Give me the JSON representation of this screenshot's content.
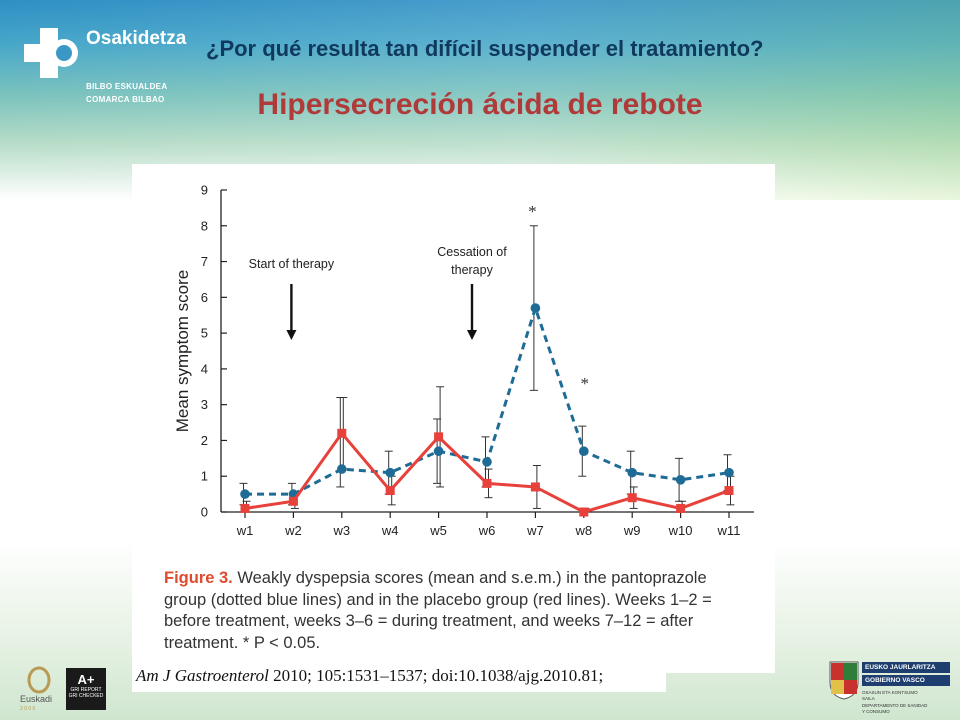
{
  "branding": {
    "org_name": "Osakidetza",
    "org_sub1": "BILBO ESKUALDEA",
    "org_sub2": "COMARCA BILBAO",
    "euskadi_label": "Euskadi",
    "euskadi_year": "2 0 0 0",
    "gri_grade": "A+",
    "gri_line1": "GRI REPORT",
    "gri_line2": "GRI CHECKED",
    "gov_line1": "EUSKO JAURLARITZA",
    "gov_line2": "GOBIERNO VASCO",
    "gov_small1": "OSASUN ETA KONTSUMO",
    "gov_small2": "SAILA",
    "gov_small3": "DEPARTAMENTO DE SANIDAD",
    "gov_small4": "Y CONSUMO"
  },
  "slide": {
    "question": "¿Por qué resulta tan difícil suspender el tratamiento?",
    "title": "Hipersecreción ácida de rebote"
  },
  "caption": {
    "label": "Figure 3.",
    "text": " Weakly dyspepsia scores (mean and s.e.m.) in the pantoprazole group (dotted blue lines) and in the placebo group (red lines). Weeks 1–2 = before treatment, weeks 3–6 = during treatment, and weeks 7–12 = after treatment. * P < 0.05."
  },
  "citation": {
    "journal": "Am J Gastroenterol",
    "rest": " 2010; 105:1531–1537; doi:10.1038/ajg.2010.81;"
  },
  "chart_data": {
    "type": "line",
    "title": "",
    "xlabel": "",
    "ylabel": "Mean symptom score",
    "categories": [
      "w1",
      "w2",
      "w3",
      "w4",
      "w5",
      "w6",
      "w7",
      "w8",
      "w9",
      "w10",
      "w11"
    ],
    "ylim": [
      0,
      9
    ],
    "yticks": [
      "0",
      "1",
      "2",
      "3",
      "4",
      "5",
      "6",
      "7",
      "8",
      "9"
    ],
    "grid": false,
    "series": [
      {
        "style": "dotted",
        "color": "#1e6b96",
        "marker": "circle",
        "values": [
          0.5,
          0.5,
          1.2,
          1.1,
          1.7,
          1.4,
          5.7,
          1.7,
          1.1,
          0.9,
          1.1
        ],
        "err_upper": [
          0.8,
          0.8,
          3.2,
          1.7,
          2.6,
          2.1,
          8.0,
          2.4,
          1.7,
          1.5,
          1.6
        ],
        "err_lower": [
          0.2,
          0.2,
          0.7,
          0.5,
          0.8,
          0.7,
          3.4,
          1.0,
          0.5,
          0.3,
          0.6
        ]
      },
      {
        "style": "solid",
        "color": "#e8403a",
        "marker": "square",
        "values": [
          0.1,
          0.3,
          2.2,
          0.6,
          2.1,
          0.8,
          0.7,
          0.0,
          0.4,
          0.1,
          0.6
        ],
        "err_upper": [
          0.3,
          0.5,
          3.2,
          1.0,
          3.5,
          1.2,
          1.3,
          0.1,
          0.7,
          0.3,
          1.0
        ],
        "err_lower": [
          0.0,
          0.1,
          1.2,
          0.2,
          0.7,
          0.4,
          0.1,
          0.0,
          0.1,
          0.0,
          0.2
        ]
      }
    ],
    "annotations": [
      {
        "text": "Start of therapy",
        "category": "w2"
      },
      {
        "text": "Cessation of therapy",
        "category": "w6"
      },
      {
        "text": "*",
        "category": "w7"
      },
      {
        "text": "*",
        "category": "w8"
      }
    ]
  }
}
